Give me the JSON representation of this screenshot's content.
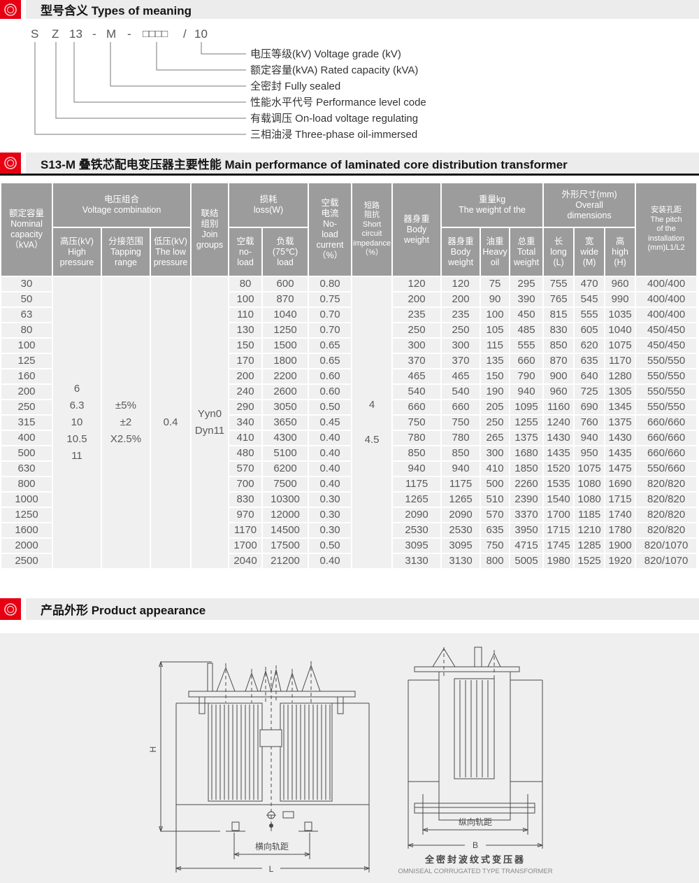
{
  "colors": {
    "accent_red": "#e60012",
    "section_bar_bg": "#ececec",
    "table_header_bg": "#9c9c9c",
    "table_row_bg": "#f0f0f0",
    "table_text": "#595959",
    "rule_black": "#161616",
    "drawing_line": "#4a4a4a"
  },
  "meaning": {
    "title": "型号含义 Types of meaning",
    "code": [
      "S",
      "Z",
      "13",
      "-",
      "M",
      "-",
      "□□□□",
      "/",
      "10"
    ],
    "labels": [
      "电压等级(kV) Voltage grade (kV)",
      "额定容量(kVA) Rated capacity (kVA)",
      "全密封 Fully sealed",
      "性能水平代号 Performance level code",
      "有载调压 On-load voltage regulating",
      "三相油浸 Three-phase oil-immersed"
    ]
  },
  "performance": {
    "title": "S13-M 叠铁芯配电变压器主要性能 Main performance of laminated core distribution transformer",
    "table": {
      "headers": {
        "capacity": "额定容量\nNominal\ncapacity\n（kVA）",
        "voltage_combo": "电压组合\nVoltage combination",
        "hv": "高压(kV)\nHigh\npressure",
        "tapping": "分接范围\nTapping\nrange",
        "lv": "低压(kV)\nThe low\npressure",
        "join": "联结\n组别\nJoin\ngroups",
        "loss": "损耗\nloss(W)",
        "loss_no_load": "空载\nno-\nload",
        "loss_load": "负载\n(75℃)\nload",
        "no_load_current": "空载\n电流\nNo-\nload\ncurrent\n（%）",
        "impedance": "短路\n阻抗\nShort\ncircuit\nimpedance\n（%）",
        "body_weight": "器身重\nBody\nweight",
        "weight_group": "重量kg\nThe weight of the",
        "weight_body": "器身重\nBody\nweight",
        "weight_oil": "油重\nHeavy\noil",
        "weight_total": "总重\nTotal\nweight",
        "dims_group": "外形尺寸(mm)\nOverall\ndimensions",
        "dim_l": "长\nlong\n(L)",
        "dim_w": "宽\nwide\n(M)",
        "dim_h": "高\nhigh\n(H)",
        "pitch": "安装孔距\nThe pitch\nof the\ninstallation\n(mm)L1/L2"
      },
      "merged_columns": [
        {
          "name": "hv-voltage-merged",
          "after_value_index": 0,
          "lines": [
            "6",
            "6.3",
            "10",
            "10.5",
            "11"
          ],
          "spread": false
        },
        {
          "name": "tapping-range-merged",
          "after_value_index": 0,
          "lines": [
            "±5%",
            "±2",
            "X2.5%"
          ],
          "spread": false
        },
        {
          "name": "lv-voltage-merged",
          "after_value_index": 0,
          "lines": [
            "0.4"
          ],
          "spread": false
        },
        {
          "name": "join-groups-merged",
          "after_value_index": 0,
          "lines": [
            "Yyn0",
            "Dyn11"
          ],
          "spread": false
        },
        {
          "name": "impedance-merged",
          "after_value_index": 3,
          "lines": [
            "4",
            "4.5"
          ],
          "spread": true
        }
      ],
      "rows": [
        [
          "30",
          "80",
          "600",
          "0.80",
          "120",
          "120",
          "75",
          "295",
          "755",
          "470",
          "960",
          "400/400"
        ],
        [
          "50",
          "100",
          "870",
          "0.75",
          "200",
          "200",
          "90",
          "390",
          "765",
          "545",
          "990",
          "400/400"
        ],
        [
          "63",
          "110",
          "1040",
          "0.70",
          "235",
          "235",
          "100",
          "450",
          "815",
          "555",
          "1035",
          "400/400"
        ],
        [
          "80",
          "130",
          "1250",
          "0.70",
          "250",
          "250",
          "105",
          "485",
          "830",
          "605",
          "1040",
          "450/450"
        ],
        [
          "100",
          "150",
          "1500",
          "0.65",
          "300",
          "300",
          "115",
          "555",
          "850",
          "620",
          "1075",
          "450/450"
        ],
        [
          "125",
          "170",
          "1800",
          "0.65",
          "370",
          "370",
          "135",
          "660",
          "870",
          "635",
          "1170",
          "550/550"
        ],
        [
          "160",
          "200",
          "2200",
          "0.60",
          "465",
          "465",
          "150",
          "790",
          "900",
          "640",
          "1280",
          "550/550"
        ],
        [
          "200",
          "240",
          "2600",
          "0.60",
          "540",
          "540",
          "190",
          "940",
          "960",
          "725",
          "1305",
          "550/550"
        ],
        [
          "250",
          "290",
          "3050",
          "0.50",
          "660",
          "660",
          "205",
          "1095",
          "1160",
          "690",
          "1345",
          "550/550"
        ],
        [
          "315",
          "340",
          "3650",
          "0.45",
          "750",
          "750",
          "250",
          "1255",
          "1240",
          "760",
          "1375",
          "660/660"
        ],
        [
          "400",
          "410",
          "4300",
          "0.40",
          "780",
          "780",
          "265",
          "1375",
          "1430",
          "940",
          "1430",
          "660/660"
        ],
        [
          "500",
          "480",
          "5100",
          "0.40",
          "850",
          "850",
          "300",
          "1680",
          "1435",
          "950",
          "1435",
          "660/660"
        ],
        [
          "630",
          "570",
          "6200",
          "0.40",
          "940",
          "940",
          "410",
          "1850",
          "1520",
          "1075",
          "1475",
          "550/660"
        ],
        [
          "800",
          "700",
          "7500",
          "0.40",
          "1175",
          "1175",
          "500",
          "2260",
          "1535",
          "1080",
          "1690",
          "820/820"
        ],
        [
          "1000",
          "830",
          "10300",
          "0.30",
          "1265",
          "1265",
          "510",
          "2390",
          "1540",
          "1080",
          "1715",
          "820/820"
        ],
        [
          "1250",
          "970",
          "12000",
          "0.30",
          "2090",
          "2090",
          "570",
          "3370",
          "1700",
          "1185",
          "1740",
          "820/820"
        ],
        [
          "1600",
          "1170",
          "14500",
          "0.30",
          "2530",
          "2530",
          "635",
          "3950",
          "1715",
          "1210",
          "1780",
          "820/820"
        ],
        [
          "2000",
          "1700",
          "17500",
          "0.50",
          "3095",
          "3095",
          "750",
          "4715",
          "1745",
          "1285",
          "1900",
          "820/1070"
        ],
        [
          "2500",
          "2040",
          "21200",
          "0.40",
          "3130",
          "3130",
          "800",
          "5005",
          "1980",
          "1525",
          "1920",
          "820/1070"
        ]
      ]
    }
  },
  "appearance": {
    "title": "产品外形 Product appearance",
    "front_view": {
      "dim_h": "H",
      "dim_l": "L",
      "rail_gauge": "横向轨距"
    },
    "side_view": {
      "rail_gauge": "纵向轨距",
      "dim_b": "B",
      "caption_zh": "全密封波纹式变压器",
      "caption_en": "OMNISEAL CORRUGATED TYPE TRANSFORMER"
    }
  }
}
